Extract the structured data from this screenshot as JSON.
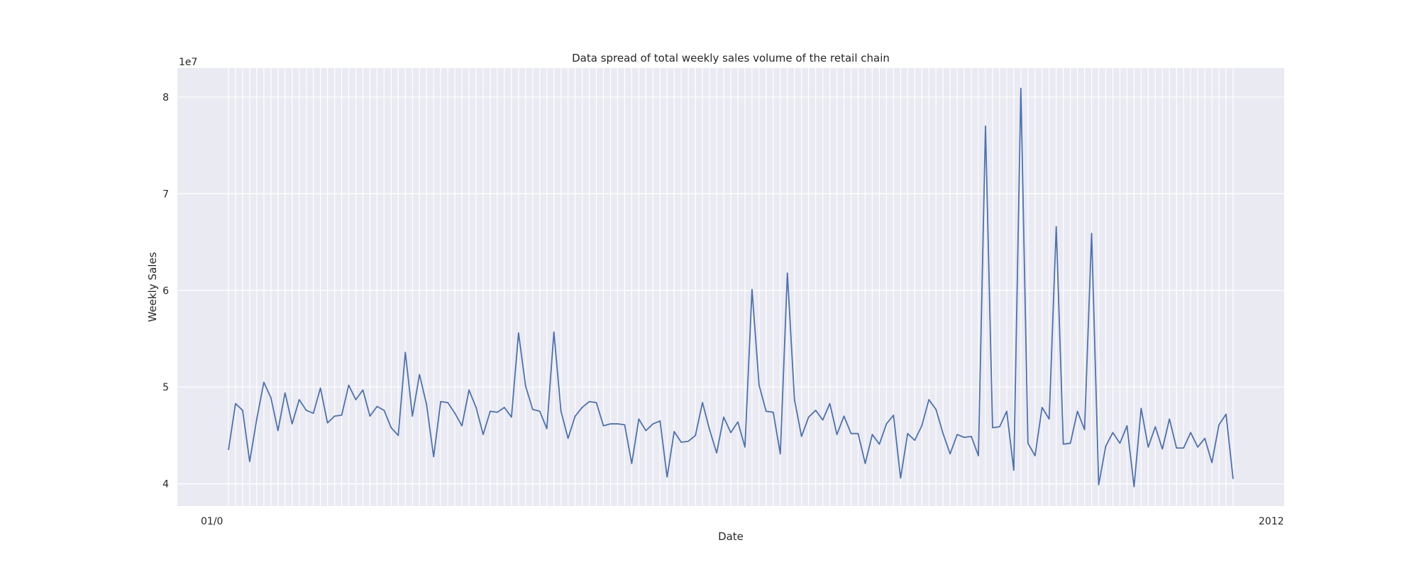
{
  "chart_data": {
    "type": "line",
    "title": "Data spread of total weekly sales volume of the retail chain",
    "xlabel": "Date",
    "ylabel": "Weekly Sales",
    "y_offset_label": "1e7",
    "ylim": [
      3.77,
      8.3
    ],
    "y_ticks": [
      4,
      5,
      6,
      7,
      8
    ],
    "grid": true,
    "x_tick_labels_note": "143 weekly date tick labels overlap and are illegible; visible fragments: 01/0 ... 2012",
    "x_tick_left_label": "01/0",
    "x_tick_right_label": "2012",
    "series": [
      {
        "values": [
          4.35,
          4.83,
          4.76,
          4.23,
          4.67,
          5.05,
          4.89,
          4.55,
          4.94,
          4.62,
          4.87,
          4.76,
          4.73,
          4.99,
          4.63,
          4.7,
          4.71,
          5.02,
          4.87,
          4.97,
          4.7,
          4.8,
          4.76,
          4.58,
          4.5,
          5.36,
          4.7,
          5.13,
          4.82,
          4.28,
          4.85,
          4.84,
          4.73,
          4.6,
          4.97,
          4.79,
          4.51,
          4.75,
          4.74,
          4.79,
          4.69,
          5.56,
          5.01,
          4.77,
          4.75,
          4.57,
          5.57,
          4.75,
          4.47,
          4.7,
          4.79,
          4.85,
          4.84,
          4.6,
          4.62,
          4.62,
          4.61,
          4.21,
          4.67,
          4.55,
          4.62,
          4.65,
          4.07,
          4.54,
          4.43,
          4.44,
          4.5,
          4.84,
          4.56,
          4.32,
          4.69,
          4.53,
          4.64,
          4.38,
          6.01,
          5.02,
          4.75,
          4.74,
          4.31,
          6.18,
          4.87,
          4.49,
          4.69,
          4.76,
          4.66,
          4.83,
          4.51,
          4.7,
          4.52,
          4.52,
          4.21,
          4.51,
          4.41,
          4.62,
          4.71,
          4.06,
          4.52,
          4.45,
          4.6,
          4.87,
          4.77,
          4.52,
          4.31,
          4.51,
          4.48,
          4.49,
          4.29,
          7.7,
          4.58,
          4.59,
          4.75,
          4.14,
          8.09,
          4.42,
          4.29,
          4.79,
          4.67,
          6.66,
          4.41,
          4.42,
          4.75,
          4.56,
          6.59,
          3.99,
          4.39,
          4.53,
          4.42,
          4.6,
          3.97,
          4.78,
          4.38,
          4.59,
          4.36,
          4.67,
          4.37,
          4.37,
          4.53,
          4.38,
          4.47,
          4.22,
          4.61,
          4.72,
          4.05
        ]
      }
    ]
  }
}
